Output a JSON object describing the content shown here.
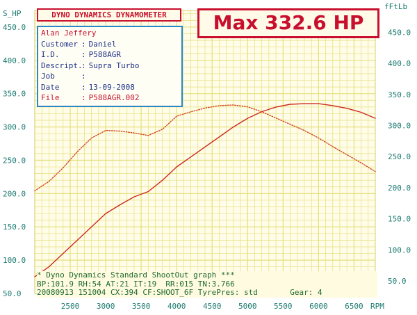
{
  "left_axis_title": "S_HP",
  "right_axis_title": "fFtLb",
  "header": {
    "title": "DYNO DYNAMICS DYNAMOMETER"
  },
  "max_label": "Max 332.6 HP",
  "info": {
    "name": "Alan Jeffery",
    "rows": [
      {
        "label": "Customer",
        "value": "Daniel"
      },
      {
        "label": "I.D.",
        "value": "P588AGR"
      },
      {
        "label": "Descript.",
        "value": "Supra Turbo"
      },
      {
        "label": "Job",
        "value": ""
      },
      {
        "label": "Date",
        "value": "13-09-2008"
      },
      {
        "label": "File",
        "value": "P588AGR.002"
      }
    ]
  },
  "footer": {
    "line1": "* Dyno Dynamics Standard ShootOut graph ***",
    "line2": "BP:101.9 RH:54 AT:21 IT:19  RR:015 TN:3.766",
    "line3": "20080913 151004 CX:394 CF:SHOOT_6F TyrePres: std       Gear: 4"
  },
  "colors": {
    "power": "#cc2a1a",
    "torque": "#d04818",
    "grid": "#e4e080",
    "axis_text": "#1c7a70",
    "accent": "#c8102e"
  },
  "chart_data": {
    "type": "line",
    "x_axis": {
      "label": "RPM",
      "range": [
        2000,
        6800
      ],
      "ticks": [
        2500,
        3000,
        3500,
        4000,
        4500,
        5000,
        5500,
        6000,
        6500
      ]
    },
    "y_left": {
      "label": "S_HP",
      "range": [
        50,
        475
      ],
      "ticks": [
        "450.0",
        "400.0",
        "350.0",
        "300.0",
        "250.0",
        "200.0",
        "150.0",
        "100.0",
        "50.0"
      ]
    },
    "y_right": {
      "label": "fFtLb",
      "range": [
        30,
        485
      ],
      "ticks": [
        "450.0",
        "400.0",
        "350.0",
        "300.0",
        "250.0",
        "200.0",
        "150.0",
        "100.0",
        "50.0"
      ]
    },
    "grid": true,
    "series": [
      {
        "name": "S_HP",
        "axis": "left",
        "style": "solid",
        "x": [
          2000,
          2200,
          2400,
          2600,
          2800,
          3000,
          3200,
          3400,
          3600,
          3800,
          4000,
          4200,
          4400,
          4600,
          4800,
          5000,
          5200,
          5400,
          5600,
          5800,
          6000,
          6200,
          6400,
          6600,
          6800
        ],
        "y": [
          75,
          90,
          110,
          130,
          150,
          170,
          183,
          195,
          203,
          220,
          240,
          255,
          270,
          285,
          300,
          313,
          323,
          330,
          334,
          335,
          335,
          332,
          328,
          322,
          313
        ]
      },
      {
        "name": "fFtLb",
        "axis": "right",
        "style": "dotted",
        "x": [
          2000,
          2200,
          2400,
          2600,
          2800,
          3000,
          3200,
          3400,
          3600,
          3800,
          4000,
          4200,
          4400,
          4600,
          4800,
          5000,
          5200,
          5400,
          5600,
          5800,
          6000,
          6200,
          6400,
          6600,
          6800
        ],
        "y": [
          195,
          210,
          232,
          258,
          280,
          292,
          291,
          288,
          284,
          294,
          315,
          322,
          328,
          332,
          333,
          330,
          322,
          312,
          302,
          292,
          280,
          266,
          253,
          240,
          226
        ]
      }
    ]
  }
}
